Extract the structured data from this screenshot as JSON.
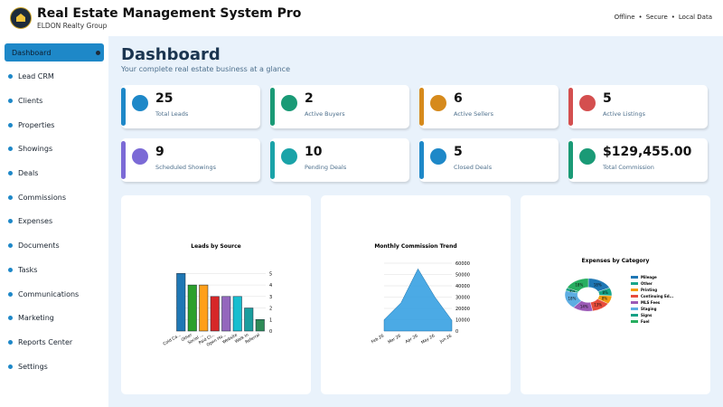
{
  "header": {
    "title": "Real Estate Management System Pro",
    "subtitle": "ELDON Realty Group",
    "status": [
      "Offline",
      "Secure",
      "Local Data"
    ]
  },
  "sidebar": {
    "items": [
      {
        "label": "Dashboard",
        "active": true
      },
      {
        "label": "Lead CRM",
        "active": false
      },
      {
        "label": "Clients",
        "active": false
      },
      {
        "label": "Properties",
        "active": false
      },
      {
        "label": "Showings",
        "active": false
      },
      {
        "label": "Deals",
        "active": false
      },
      {
        "label": "Commissions",
        "active": false
      },
      {
        "label": "Expenses",
        "active": false
      },
      {
        "label": "Documents",
        "active": false
      },
      {
        "label": "Tasks",
        "active": false
      },
      {
        "label": "Communications",
        "active": false
      },
      {
        "label": "Marketing",
        "active": false
      },
      {
        "label": "Reports Center",
        "active": false
      },
      {
        "label": "Settings",
        "active": false
      }
    ]
  },
  "main": {
    "title": "Dashboard",
    "subtitle": "Your complete real estate business at a glance"
  },
  "stats": [
    {
      "value": "25",
      "label": "Total Leads",
      "color": "#1e88c8"
    },
    {
      "value": "2",
      "label": "Active Buyers",
      "color": "#1a9a76"
    },
    {
      "value": "6",
      "label": "Active Sellers",
      "color": "#d68a1c"
    },
    {
      "value": "5",
      "label": "Active Listings",
      "color": "#d44f4f"
    },
    {
      "value": "9",
      "label": "Scheduled Showings",
      "color": "#7b6ad6"
    },
    {
      "value": "10",
      "label": "Pending Deals",
      "color": "#1aa3a8"
    },
    {
      "value": "5",
      "label": "Closed Deals",
      "color": "#1e88c8"
    },
    {
      "value": "$129,455.00",
      "label": "Total Commission",
      "color": "#1a9a76"
    }
  ],
  "charts": [
    {
      "type": "bar",
      "title": "Leads by Source",
      "categories": [
        "Cold Ca...",
        "Other",
        "Social ...",
        "Paid Cl...",
        "Open Ho...",
        "Website",
        "Walk In",
        "Referral"
      ],
      "values": [
        5,
        4,
        4,
        3,
        3,
        3,
        2,
        1
      ],
      "colors": [
        "#1f77b4",
        "#2ca02c",
        "#ff9f1a",
        "#d62728",
        "#9467bd",
        "#17becf",
        "#1b9e9e",
        "#2e8b57"
      ],
      "ylim": [
        0,
        5.5
      ],
      "yticks": [
        0,
        1,
        2,
        3,
        4,
        5
      ]
    },
    {
      "type": "area",
      "title": "Monthly Commission Trend",
      "categories": [
        "Feb 26",
        "Mar 26",
        "Apr 26",
        "May 26",
        "Jun 26"
      ],
      "values": [
        10000,
        25000,
        55000,
        30000,
        9455
      ],
      "color": "#2b9be0",
      "ylim": [
        0,
        60000
      ],
      "yticks": [
        0,
        10000,
        20000,
        30000,
        40000,
        50000,
        60000
      ]
    },
    {
      "type": "pie",
      "title": "Expenses by Category",
      "categories": [
        "Mileage",
        "Other",
        "Printing",
        "Continuing Ed...",
        "MLS Fees",
        "Staging",
        "Signs",
        "Fuel"
      ],
      "values": [
        18,
        8,
        8,
        13,
        14,
        18,
        3,
        18
      ],
      "value_labels": [
        "18%",
        "8%",
        "8%",
        "13%",
        "14%",
        "18%",
        "3%",
        "18%"
      ],
      "colors": [
        "#1f77b4",
        "#17a589",
        "#f39c12",
        "#e74c3c",
        "#9b59b6",
        "#5dade2",
        "#16a085",
        "#27ae60"
      ]
    }
  ]
}
